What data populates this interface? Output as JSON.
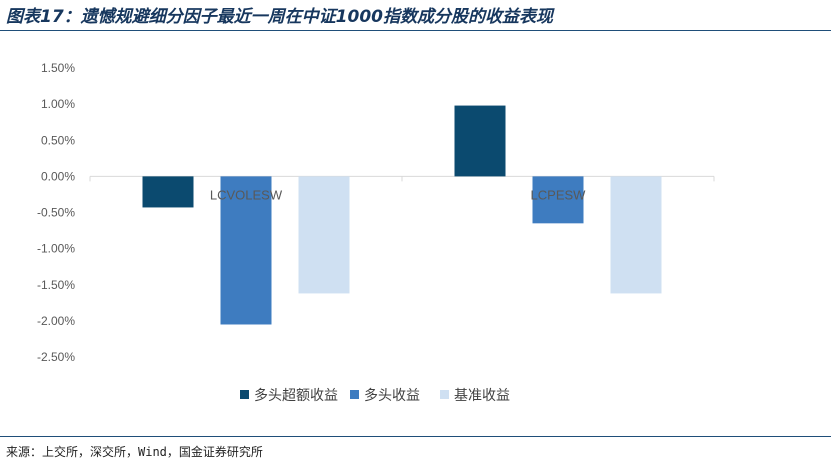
{
  "header": {
    "title": "图表17：遗憾规避细分因子最近一周在中证1000指数成分股的收益表现"
  },
  "footer": {
    "source": "来源：上交所，深交所，Wind，国金证券研究所"
  },
  "chart_data": {
    "type": "bar",
    "categories": [
      "LCVOLESW",
      "LCPESW"
    ],
    "series": [
      {
        "name": "多头超额收益",
        "values": [
          -0.43,
          0.98
        ],
        "color": "#0b4a6f"
      },
      {
        "name": "多头收益",
        "values": [
          -2.05,
          -0.65
        ],
        "color": "#3e7cc0"
      },
      {
        "name": "基准收益",
        "values": [
          -1.62,
          -1.62
        ],
        "color": "#cfe0f2"
      }
    ],
    "yticks": [
      "1.50%",
      "1.00%",
      "0.50%",
      "0.00%",
      "-0.50%",
      "-1.00%",
      "-1.50%",
      "-2.00%",
      "-2.50%"
    ],
    "ylim": [
      -2.5,
      1.5
    ],
    "grid": false,
    "legend_position": "bottom"
  }
}
